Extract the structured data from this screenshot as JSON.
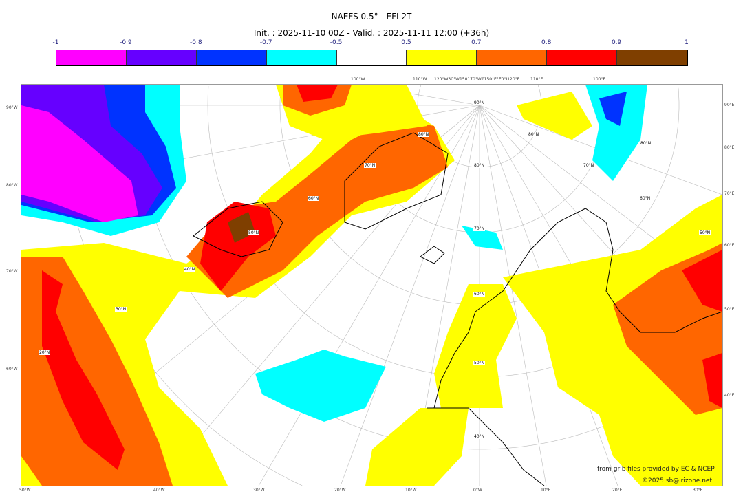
{
  "title": "NAEFS 0.5° - EFI 2T",
  "subtitle": "Init. : 2025-11-10 00Z - Valid. : 2025-11-11 12:00 (+36h)",
  "colorbar": {
    "ticks": [
      "-1",
      "-0.9",
      "-0.8",
      "-0.7",
      "-0.5",
      "0.5",
      "0.7",
      "0.8",
      "0.9",
      "1"
    ],
    "colors": [
      "#ff00ff",
      "#6600ff",
      "#0033ff",
      "#00ffff",
      "#ffffff",
      "#ffff00",
      "#ff6600",
      "#ff0000",
      "#7f3f00"
    ]
  },
  "axes": {
    "top": [
      "100°W",
      "110°W",
      "120°W30°W150170°W€150°E°E0°I120°E",
      "110°E",
      "100°E"
    ],
    "left": [
      "90°W",
      "80°W",
      "70°W",
      "60°W"
    ],
    "right": [
      "90°E",
      "80°E",
      "70°E",
      "60°E",
      "50°E",
      "40°E"
    ],
    "bottom": [
      "50°W",
      "40°W",
      "30°W",
      "20°W",
      "10°W",
      "0°W",
      "10°E",
      "20°E",
      "30°E"
    ]
  },
  "lat_labels": [
    "90°N",
    "80°N",
    "80°N",
    "80°N",
    "80°N",
    "70°N",
    "70°N",
    "70°N",
    "60°N",
    "60°N",
    "60°N",
    "50°N",
    "50°N",
    "50°N",
    "40°N",
    "40°N",
    "30°N",
    "20°N"
  ],
  "attribution": {
    "source": "from grib files provided by EC & NCEP",
    "copyright": "©2025 sb@irizone.net"
  }
}
